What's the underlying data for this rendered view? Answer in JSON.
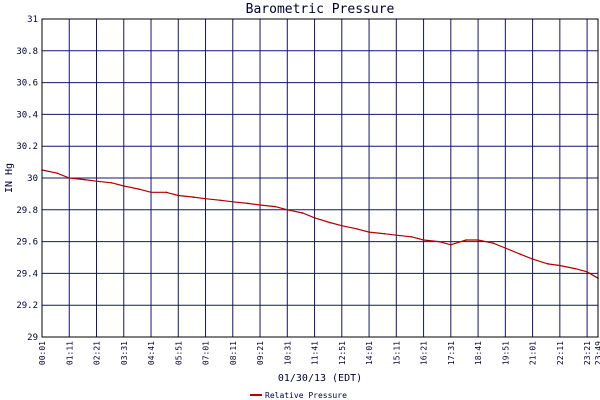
{
  "chart_data": {
    "type": "line",
    "title": "Barometric Pressure",
    "xlabel": "01/30/13 (EDT)",
    "ylabel": "IN Hg",
    "ylim": [
      29,
      31
    ],
    "yticks": [
      "29",
      "29.2",
      "29.4",
      "29.6",
      "29.8",
      "30",
      "30.2",
      "30.4",
      "30.6",
      "30.8",
      "31"
    ],
    "xticks": [
      "00:01",
      "01:11",
      "02:21",
      "03:31",
      "04:41",
      "05:51",
      "07:01",
      "08:11",
      "09:21",
      "10:31",
      "11:41",
      "12:51",
      "14:01",
      "15:11",
      "16:21",
      "17:31",
      "18:41",
      "19:51",
      "21:01",
      "22:11",
      "23:21",
      "23:49"
    ],
    "grid": true,
    "legend_position": "bottom-center",
    "colors": {
      "line": "#b00000",
      "grid": "#14146e",
      "axis": "#000000",
      "text": "#000033"
    },
    "series": [
      {
        "name": "Relative Pressure",
        "x": [
          "00:01",
          "00:40",
          "01:11",
          "01:50",
          "02:21",
          "03:00",
          "03:31",
          "04:10",
          "04:41",
          "05:20",
          "05:51",
          "06:30",
          "07:01",
          "07:40",
          "08:11",
          "08:50",
          "09:21",
          "10:00",
          "10:31",
          "11:10",
          "11:41",
          "12:20",
          "12:51",
          "13:30",
          "14:01",
          "14:40",
          "15:11",
          "15:50",
          "16:21",
          "17:00",
          "17:31",
          "18:10",
          "18:41",
          "19:20",
          "19:51",
          "20:30",
          "21:01",
          "21:40",
          "22:11",
          "22:50",
          "23:21",
          "23:49"
        ],
        "values": [
          30.05,
          30.03,
          30.0,
          29.99,
          29.98,
          29.97,
          29.95,
          29.93,
          29.91,
          29.91,
          29.89,
          29.88,
          29.87,
          29.86,
          29.85,
          29.84,
          29.83,
          29.82,
          29.8,
          29.78,
          29.75,
          29.72,
          29.7,
          29.68,
          29.66,
          29.65,
          29.64,
          29.63,
          29.61,
          29.6,
          29.58,
          29.61,
          29.61,
          29.59,
          29.56,
          29.52,
          29.49,
          29.46,
          29.45,
          29.43,
          29.41,
          29.37
        ]
      }
    ]
  }
}
